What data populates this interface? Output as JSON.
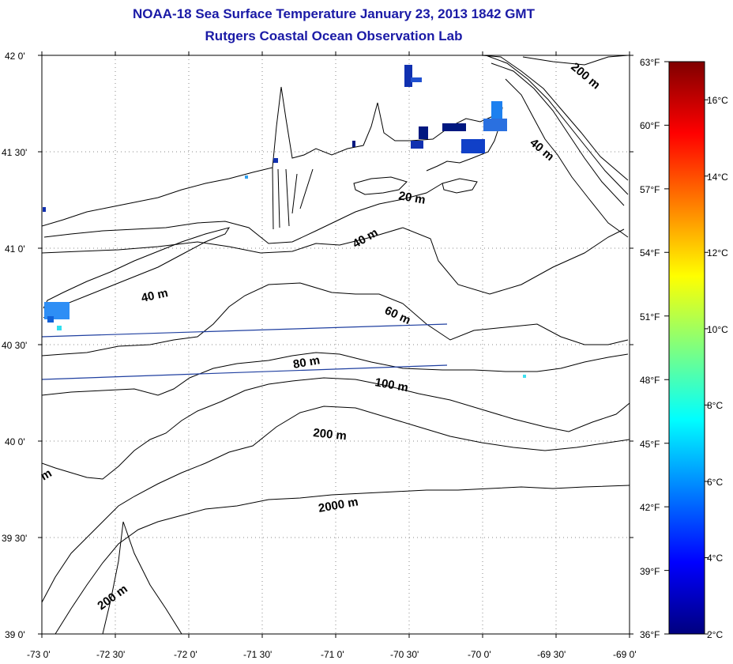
{
  "title": {
    "line1": "NOAA-18 Sea Surface Temperature January 23, 2013 1842 GMT",
    "line2": "Rutgers Coastal Ocean Observation Lab"
  },
  "map": {
    "lat_labels": [
      "42 0'",
      "41 30'",
      "41 0'",
      "40 30'",
      "40 0'",
      "39 30'",
      "39 0'"
    ],
    "lon_labels": [
      "-73 0'",
      "-72 30'",
      "-72 0'",
      "-71 30'",
      "-71 0'",
      "-70 30'",
      "-70 0'",
      "-69 30'",
      "-69 0'"
    ],
    "depth_labels": {
      "d200_ne": "200 m",
      "d40_ne": "40 m",
      "d20": "20 m",
      "d40_mid": "40 m",
      "d40_west": "40 m",
      "d60": "60 m",
      "d80": "80 m",
      "d100": "100 m",
      "d200_mid": "200 m",
      "d2000": "2000 m",
      "d200_sw": "200 m",
      "edge_m": "m"
    }
  },
  "colorbar": {
    "fahrenheit": [
      "63°F",
      "60°F",
      "57°F",
      "54°F",
      "51°F",
      "48°F",
      "45°F",
      "42°F",
      "39°F",
      "36°F"
    ],
    "celsius": [
      "16°C",
      "14°C",
      "12°C",
      "10°C",
      "8°C",
      "6°C",
      "4°C",
      "2°C"
    ],
    "colors": [
      "#00007f",
      "#0000ff",
      "#007fff",
      "#00ffff",
      "#7fff7f",
      "#ffff00",
      "#ff7f00",
      "#ff0000",
      "#7f0000"
    ]
  }
}
